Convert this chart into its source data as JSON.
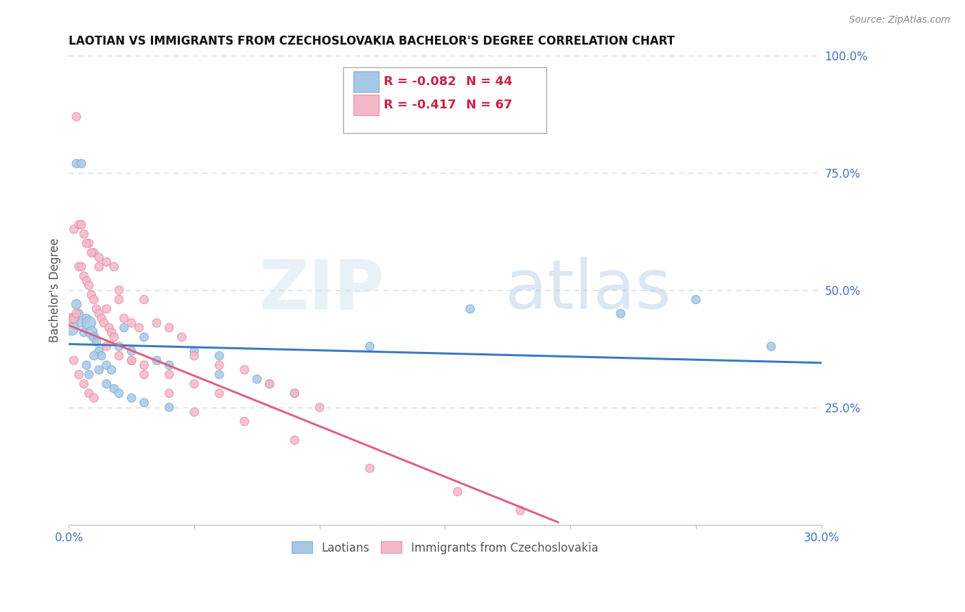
{
  "title": "LAOTIAN VS IMMIGRANTS FROM CZECHOSLOVAKIA BACHELOR'S DEGREE CORRELATION CHART",
  "source": "Source: ZipAtlas.com",
  "ylabel": "Bachelor's Degree",
  "right_yticklabels": [
    "25.0%",
    "50.0%",
    "75.0%",
    "100.0%"
  ],
  "right_ytick_vals": [
    0.25,
    0.5,
    0.75,
    1.0
  ],
  "xmin": 0.0,
  "xmax": 0.3,
  "ymin": 0.0,
  "ymax": 1.0,
  "blue_color": "#a8c8e8",
  "blue_edge_color": "#7bafd4",
  "pink_color": "#f5b8c8",
  "pink_edge_color": "#e890a8",
  "blue_line_color": "#3a7abf",
  "pink_line_color": "#e06080",
  "grid_color": "#c8dce8",
  "watermark_zip": "ZIP",
  "watermark_atlas": "atlas",
  "legend_label1": "Laotians",
  "legend_label2": "Immigrants from Czechoslovakia",
  "legend_R1": "-0.082",
  "legend_N1": "44",
  "legend_R2": "-0.417",
  "legend_N2": "67",
  "blue_x": [
    0.001,
    0.002,
    0.003,
    0.004,
    0.005,
    0.006,
    0.007,
    0.008,
    0.009,
    0.01,
    0.011,
    0.012,
    0.013,
    0.015,
    0.017,
    0.02,
    0.022,
    0.025,
    0.03,
    0.035,
    0.04,
    0.05,
    0.06,
    0.075,
    0.09,
    0.003,
    0.005,
    0.007,
    0.008,
    0.01,
    0.012,
    0.015,
    0.018,
    0.02,
    0.025,
    0.03,
    0.04,
    0.06,
    0.08,
    0.12,
    0.16,
    0.22,
    0.25,
    0.28
  ],
  "blue_y": [
    0.42,
    0.44,
    0.47,
    0.45,
    0.43,
    0.41,
    0.44,
    0.43,
    0.41,
    0.4,
    0.39,
    0.37,
    0.36,
    0.34,
    0.33,
    0.38,
    0.42,
    0.37,
    0.4,
    0.35,
    0.34,
    0.37,
    0.36,
    0.31,
    0.28,
    0.77,
    0.77,
    0.34,
    0.32,
    0.36,
    0.33,
    0.3,
    0.29,
    0.28,
    0.27,
    0.26,
    0.25,
    0.32,
    0.3,
    0.38,
    0.46,
    0.45,
    0.48,
    0.38
  ],
  "blue_sizes": [
    250,
    120,
    100,
    80,
    80,
    80,
    80,
    200,
    150,
    100,
    80,
    80,
    80,
    80,
    80,
    80,
    80,
    80,
    80,
    80,
    80,
    80,
    80,
    80,
    80,
    80,
    80,
    80,
    80,
    80,
    80,
    80,
    80,
    80,
    80,
    80,
    80,
    80,
    80,
    80,
    80,
    80,
    80,
    80
  ],
  "pink_x": [
    0.001,
    0.002,
    0.003,
    0.004,
    0.005,
    0.006,
    0.007,
    0.008,
    0.009,
    0.01,
    0.011,
    0.012,
    0.013,
    0.014,
    0.015,
    0.016,
    0.017,
    0.018,
    0.02,
    0.022,
    0.025,
    0.028,
    0.03,
    0.035,
    0.04,
    0.045,
    0.05,
    0.06,
    0.07,
    0.08,
    0.09,
    0.1,
    0.002,
    0.004,
    0.006,
    0.008,
    0.01,
    0.012,
    0.015,
    0.018,
    0.02,
    0.025,
    0.03,
    0.04,
    0.05,
    0.06,
    0.003,
    0.005,
    0.007,
    0.009,
    0.012,
    0.015,
    0.02,
    0.025,
    0.03,
    0.04,
    0.05,
    0.07,
    0.09,
    0.12,
    0.155,
    0.18,
    0.002,
    0.004,
    0.006,
    0.008,
    0.01
  ],
  "pink_y": [
    0.44,
    0.44,
    0.45,
    0.55,
    0.55,
    0.53,
    0.52,
    0.51,
    0.49,
    0.48,
    0.46,
    0.45,
    0.44,
    0.43,
    0.46,
    0.42,
    0.41,
    0.4,
    0.48,
    0.44,
    0.43,
    0.42,
    0.48,
    0.43,
    0.42,
    0.4,
    0.36,
    0.34,
    0.33,
    0.3,
    0.28,
    0.25,
    0.63,
    0.64,
    0.62,
    0.6,
    0.58,
    0.57,
    0.56,
    0.55,
    0.5,
    0.35,
    0.34,
    0.32,
    0.3,
    0.28,
    0.87,
    0.64,
    0.6,
    0.58,
    0.55,
    0.38,
    0.36,
    0.35,
    0.32,
    0.28,
    0.24,
    0.22,
    0.18,
    0.12,
    0.07,
    0.03,
    0.35,
    0.32,
    0.3,
    0.28,
    0.27
  ],
  "pink_sizes": [
    100,
    80,
    80,
    80,
    80,
    80,
    80,
    80,
    80,
    80,
    80,
    80,
    80,
    80,
    80,
    80,
    80,
    80,
    80,
    80,
    80,
    80,
    80,
    80,
    80,
    80,
    80,
    80,
    80,
    80,
    80,
    80,
    80,
    80,
    80,
    80,
    80,
    80,
    80,
    80,
    80,
    80,
    80,
    80,
    80,
    80,
    80,
    80,
    80,
    80,
    80,
    80,
    80,
    80,
    80,
    80,
    80,
    80,
    80,
    80,
    80,
    80,
    80,
    80,
    80,
    80,
    80
  ],
  "blue_trend_x": [
    0.0,
    0.3
  ],
  "blue_trend_y": [
    0.385,
    0.345
  ],
  "pink_trend_x": [
    0.0,
    0.195
  ],
  "pink_trend_y": [
    0.425,
    0.005
  ]
}
